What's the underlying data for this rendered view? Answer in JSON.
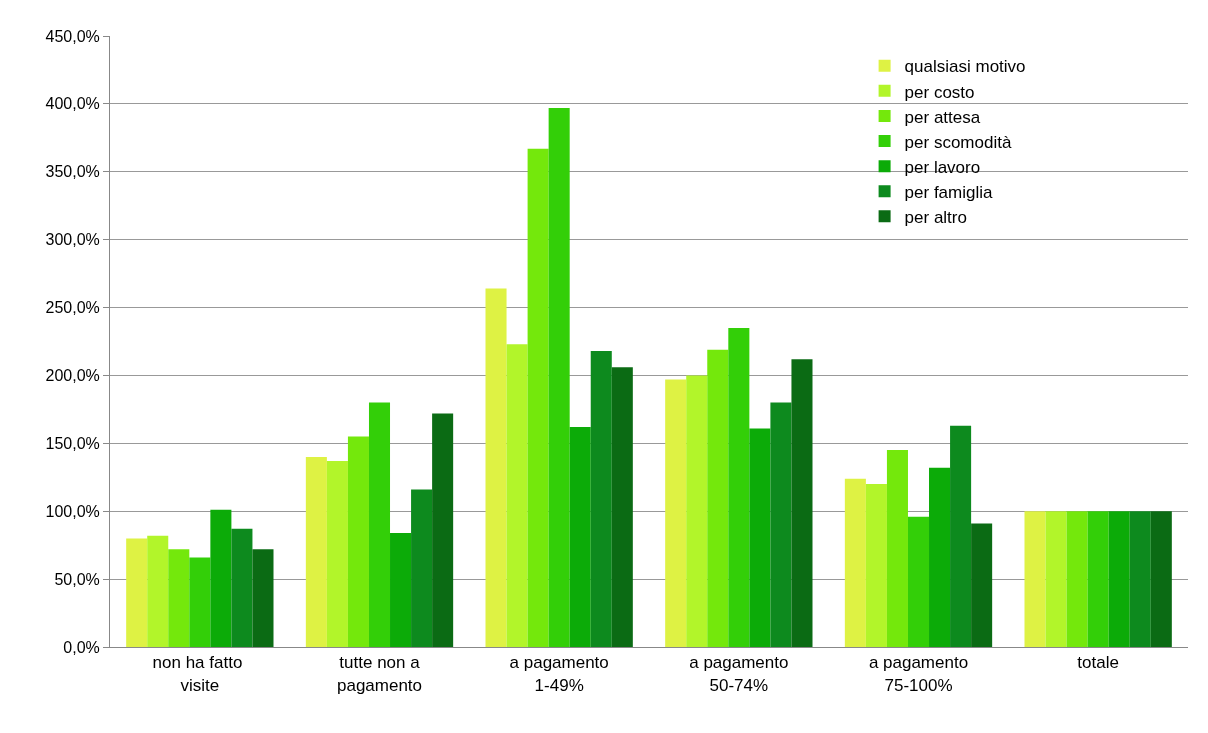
{
  "chart_data": {
    "type": "bar",
    "categories": [
      "non ha fatto  visite",
      "tutte non a pagamento",
      "a pagamento 1-49%",
      "a pagamento 50-74%",
      "a pagamento 75-100%",
      "totale"
    ],
    "series": [
      {
        "name": "qualsiasi motivo",
        "color": "#def244",
        "values": [
          80,
          140,
          264,
          197,
          124,
          100
        ]
      },
      {
        "name": "per costo",
        "color": "#b2f52a",
        "values": [
          82,
          137,
          223,
          200,
          120,
          100
        ]
      },
      {
        "name": "per attesa",
        "color": "#74e80c",
        "values": [
          72,
          155,
          367,
          219,
          145,
          100
        ]
      },
      {
        "name": "per scomodità",
        "color": "#33cf08",
        "values": [
          66,
          180,
          397,
          235,
          96,
          100
        ]
      },
      {
        "name": "per lavoro",
        "color": "#0cab08",
        "values": [
          101,
          84,
          162,
          161,
          132,
          100
        ]
      },
      {
        "name": "per famiglia",
        "color": "#0d8a1e",
        "values": [
          87,
          116,
          218,
          180,
          163,
          100
        ]
      },
      {
        "name": "per altro",
        "color": "#0b6b14",
        "values": [
          72,
          172,
          206,
          212,
          91,
          100
        ]
      }
    ],
    "ylim": [
      0,
      450
    ],
    "yticks": [
      {
        "value": 0,
        "label": "0,0%"
      },
      {
        "value": 50,
        "label": "50,0%"
      },
      {
        "value": 100,
        "label": "100,0%"
      },
      {
        "value": 150,
        "label": "150,0%"
      },
      {
        "value": 200,
        "label": "200,0%"
      },
      {
        "value": 250,
        "label": "250,0%"
      },
      {
        "value": 300,
        "label": "300,0%"
      },
      {
        "value": 350,
        "label": "350,0%"
      },
      {
        "value": 400,
        "label": "400,0%"
      },
      {
        "value": 450,
        "label": "450,0%"
      }
    ],
    "grid": "y",
    "legend": "top right"
  }
}
